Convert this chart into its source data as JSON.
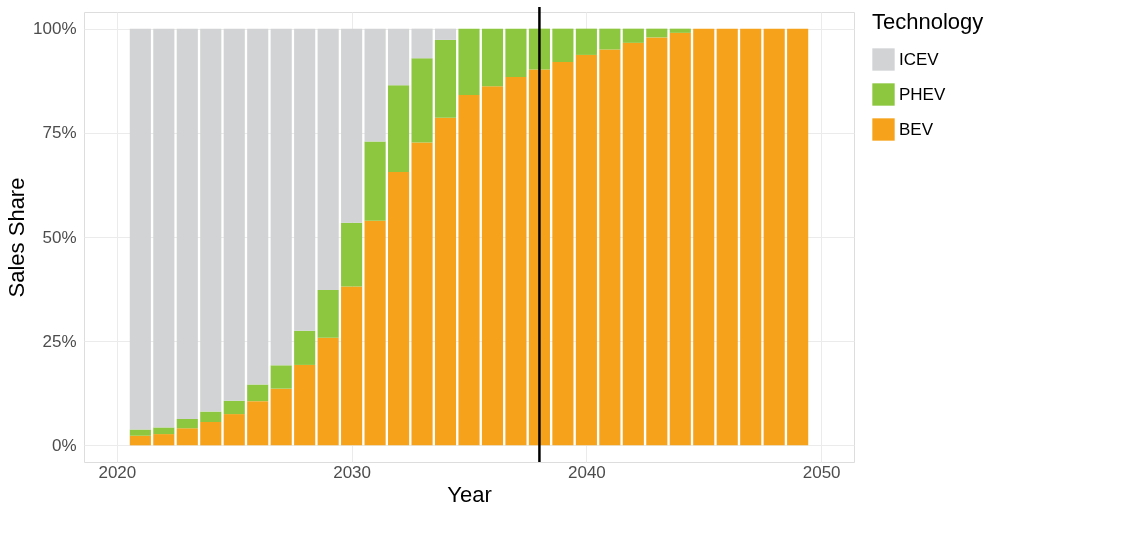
{
  "chart_data": {
    "type": "bar",
    "stacked": true,
    "xlabel": "Year",
    "ylabel": "Sales Share",
    "legend_title": "Technology",
    "x": [
      2021,
      2022,
      2023,
      2024,
      2025,
      2026,
      2027,
      2028,
      2029,
      2030,
      2031,
      2032,
      2033,
      2034,
      2035,
      2036,
      2037,
      2038,
      2039,
      2040,
      2041,
      2042,
      2043,
      2044,
      2045,
      2046,
      2047,
      2048,
      2049
    ],
    "series": [
      {
        "name": "BEV",
        "color": "#f7a21b",
        "values": [
          2.3,
          2.7,
          4.1,
          5.6,
          7.5,
          10.6,
          13.6,
          19.3,
          25.8,
          38.1,
          53.9,
          65.6,
          72.7,
          78.6,
          84.1,
          86.2,
          88.4,
          90.2,
          92.0,
          93.7,
          95.0,
          96.6,
          97.9,
          99.0,
          100,
          100,
          100,
          100,
          100
        ]
      },
      {
        "name": "PHEV",
        "color": "#8dc63f",
        "values": [
          1.5,
          1.6,
          2.2,
          2.5,
          3.2,
          4.0,
          5.6,
          8.2,
          11.5,
          15.3,
          19.0,
          20.8,
          20.2,
          18.7,
          15.9,
          13.8,
          11.6,
          9.8,
          8.0,
          6.3,
          5.0,
          3.4,
          2.1,
          1.0,
          0,
          0,
          0,
          0,
          0
        ]
      },
      {
        "name": "ICEV",
        "color": "#d1d3d4",
        "values": [
          96.2,
          95.7,
          93.7,
          91.9,
          89.3,
          85.4,
          80.8,
          72.5,
          62.7,
          46.6,
          27.1,
          13.6,
          7.1,
          2.7,
          0,
          0,
          0,
          0,
          0,
          0,
          0,
          0,
          0,
          0,
          0,
          0,
          0,
          0,
          0
        ]
      }
    ],
    "xlim": [
      2018.6,
      2051.4
    ],
    "xticks": [
      2020,
      2030,
      2040,
      2050
    ],
    "ylim": [
      -4,
      104
    ],
    "yticks": [
      {
        "value": 0,
        "label": "0%"
      },
      {
        "value": 25,
        "label": "25%"
      },
      {
        "value": 50,
        "label": "50%"
      },
      {
        "value": 75,
        "label": "75%"
      },
      {
        "value": 100,
        "label": "100%"
      }
    ],
    "ref_lines": [
      {
        "axis": "x",
        "value": 2038,
        "label": null,
        "color": "#000000"
      }
    ],
    "grid": true,
    "legend": "right"
  }
}
